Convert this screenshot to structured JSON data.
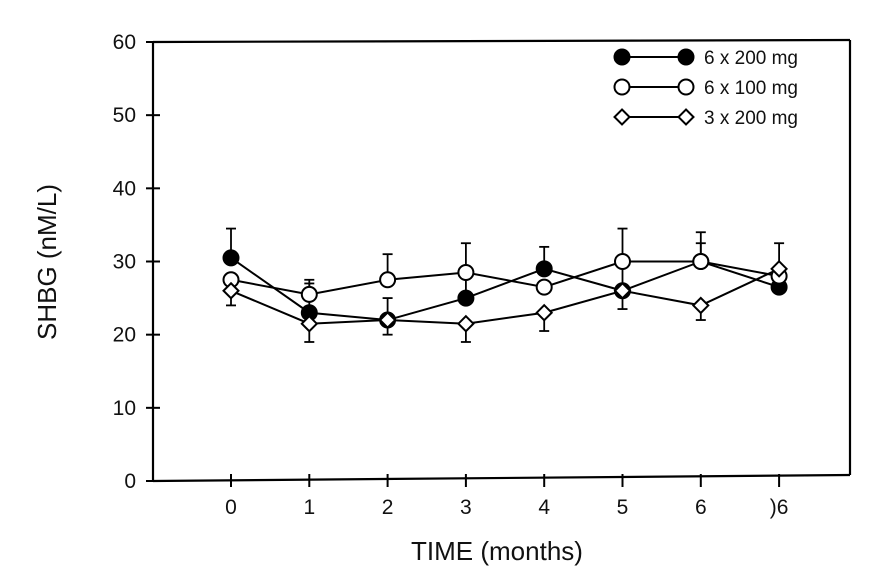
{
  "chart_data": {
    "type": "line",
    "title": "",
    "xlabel": "TIME (months)",
    "ylabel": "SHBG (nM/L)",
    "ylim": [
      0,
      60
    ],
    "yticks": [
      0,
      10,
      20,
      30,
      40,
      50,
      60
    ],
    "categories": [
      "0",
      "1",
      "2",
      "3",
      "4",
      "5",
      "6",
      ")6"
    ],
    "legend_position": "top-right",
    "series": [
      {
        "name": "6 x 200 mg",
        "marker": "filled-circle",
        "values": [
          30.5,
          23.0,
          22.0,
          25.0,
          29.0,
          26.0,
          30.0,
          26.5
        ],
        "error_upper": [
          34.5,
          27.0,
          25.0,
          29.0,
          32.0,
          29.5,
          34.0,
          32.5
        ],
        "error_lower": [
          null,
          null,
          20.0,
          null,
          null,
          23.5,
          null,
          null
        ]
      },
      {
        "name": "6 x 100 mg",
        "marker": "open-circle",
        "values": [
          27.5,
          25.5,
          27.5,
          28.5,
          26.5,
          30.0,
          30.0,
          28.0
        ],
        "error_upper": [
          null,
          27.5,
          31.0,
          32.5,
          null,
          34.5,
          32.5,
          null
        ],
        "error_lower": [
          null,
          null,
          null,
          null,
          null,
          null,
          null,
          null
        ]
      },
      {
        "name": "3 x 200 mg",
        "marker": "open-diamond",
        "values": [
          26.0,
          21.5,
          22.0,
          21.5,
          23.0,
          26.0,
          24.0,
          29.0
        ],
        "error_upper": [
          null,
          null,
          null,
          null,
          null,
          null,
          null,
          null
        ],
        "error_lower": [
          24.0,
          19.0,
          null,
          19.0,
          20.5,
          null,
          22.0,
          null
        ]
      }
    ]
  }
}
